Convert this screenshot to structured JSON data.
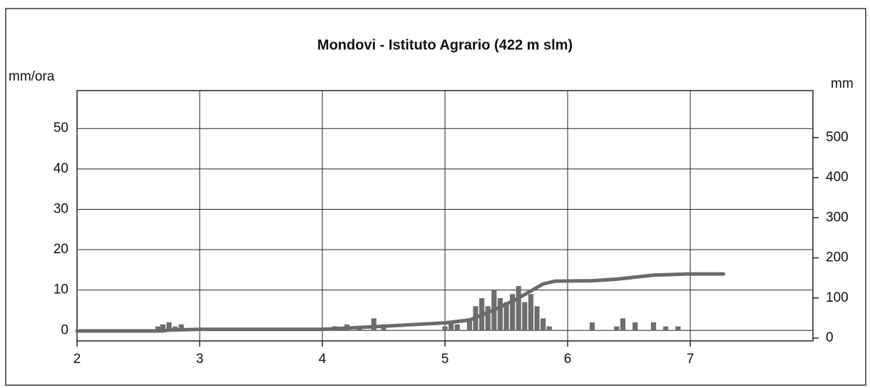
{
  "chart_data": {
    "type": "bar-line",
    "title": "Mondovi - Istituto Agrario (422 m slm)",
    "y_label": "mm/ora",
    "y2_label": "mm",
    "xlim": [
      2,
      8
    ],
    "xticks": [
      2,
      3,
      4,
      5,
      6,
      7
    ],
    "ylim": [
      -2.6,
      59.4
    ],
    "yticks": [
      0,
      10,
      20,
      30,
      40,
      50
    ],
    "y2lim": [
      -7,
      617
    ],
    "y2ticks": [
      0,
      100,
      200,
      300,
      400,
      500
    ],
    "grid": true,
    "series": [
      {
        "name": "mm/ora",
        "color": "#6e6e6e",
        "x": [
          2.66,
          2.7,
          2.75,
          2.8,
          2.85,
          4.1,
          4.2,
          4.3,
          4.42,
          4.5,
          5.0,
          5.05,
          5.1,
          5.2,
          5.25,
          5.3,
          5.35,
          5.4,
          5.45,
          5.5,
          5.55,
          5.6,
          5.65,
          5.7,
          5.75,
          5.8,
          5.85,
          6.2,
          6.4,
          6.45,
          6.55,
          6.7,
          6.8,
          6.9
        ],
        "values": [
          1,
          1.5,
          2,
          1,
          1.5,
          1,
          1.5,
          1,
          3,
          1.5,
          1,
          2,
          1.5,
          3,
          6,
          8,
          6,
          10,
          8,
          7,
          9,
          11,
          7,
          9,
          6,
          3,
          1,
          2,
          1,
          3,
          2,
          2,
          1,
          1
        ]
      },
      {
        "name": "mm",
        "color": "#6a6a6a",
        "axis": "y2",
        "x": [
          2,
          2.7,
          2.75,
          3,
          4,
          4.4,
          5,
          5.2,
          5.4,
          5.6,
          5.8,
          5.9,
          6.2,
          6.4,
          6.7,
          7,
          7.27
        ],
        "values": [
          18,
          18,
          20,
          22,
          22,
          28,
          38,
          45,
          70,
          100,
          135,
          142,
          143,
          147,
          157,
          160,
          160
        ]
      }
    ]
  }
}
